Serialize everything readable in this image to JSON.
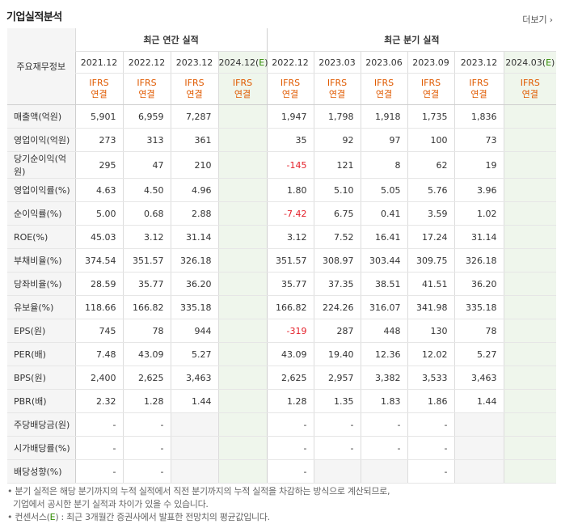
{
  "title": "기업실적분석",
  "more_label": "더보기",
  "label_header": "주요재무정보",
  "annual_group": "최근 연간 실적",
  "quarter_group": "최근 분기 실적",
  "annual_periods": [
    "2021.12",
    "2022.12",
    "2023.12",
    "2024.12(E)"
  ],
  "quarter_periods": [
    "2022.12",
    "2023.03",
    "2023.06",
    "2023.09",
    "2023.12",
    "2024.03(E)"
  ],
  "ifrs_line1": "IFRS",
  "ifrs_line2": "연결",
  "rows": [
    {
      "label": "매출액(억원)",
      "annual": [
        "5,901",
        "6,959",
        "7,287",
        ""
      ],
      "quarter": [
        "1,947",
        "1,798",
        "1,918",
        "1,735",
        "1,836",
        ""
      ]
    },
    {
      "label": "영업이익(억원)",
      "annual": [
        "273",
        "313",
        "361",
        ""
      ],
      "quarter": [
        "35",
        "92",
        "97",
        "100",
        "73",
        ""
      ]
    },
    {
      "label": "당기순이익(억원)",
      "annual": [
        "295",
        "47",
        "210",
        ""
      ],
      "quarter": [
        "-145",
        "121",
        "8",
        "62",
        "19",
        ""
      ]
    },
    {
      "label": "영업이익률(%)",
      "annual": [
        "4.63",
        "4.50",
        "4.96",
        ""
      ],
      "quarter": [
        "1.80",
        "5.10",
        "5.05",
        "5.76",
        "3.96",
        ""
      ]
    },
    {
      "label": "순이익률(%)",
      "annual": [
        "5.00",
        "0.68",
        "2.88",
        ""
      ],
      "quarter": [
        "-7.42",
        "6.75",
        "0.41",
        "3.59",
        "1.02",
        ""
      ]
    },
    {
      "label": "ROE(%)",
      "annual": [
        "45.03",
        "3.12",
        "31.14",
        ""
      ],
      "quarter": [
        "3.12",
        "7.52",
        "16.41",
        "17.24",
        "31.14",
        ""
      ]
    },
    {
      "label": "부채비율(%)",
      "annual": [
        "374.54",
        "351.57",
        "326.18",
        ""
      ],
      "quarter": [
        "351.57",
        "308.97",
        "303.44",
        "309.75",
        "326.18",
        ""
      ]
    },
    {
      "label": "당좌비율(%)",
      "annual": [
        "28.59",
        "35.77",
        "36.20",
        ""
      ],
      "quarter": [
        "35.77",
        "37.35",
        "38.51",
        "41.51",
        "36.20",
        ""
      ]
    },
    {
      "label": "유보율(%)",
      "annual": [
        "118.66",
        "166.82",
        "335.18",
        ""
      ],
      "quarter": [
        "166.82",
        "224.26",
        "316.07",
        "341.98",
        "335.18",
        ""
      ]
    },
    {
      "label": "EPS(원)",
      "annual": [
        "745",
        "78",
        "944",
        ""
      ],
      "quarter": [
        "-319",
        "287",
        "448",
        "130",
        "78",
        ""
      ]
    },
    {
      "label": "PER(배)",
      "annual": [
        "7.48",
        "43.09",
        "5.27",
        ""
      ],
      "quarter": [
        "43.09",
        "19.40",
        "12.36",
        "12.02",
        "5.27",
        ""
      ]
    },
    {
      "label": "BPS(원)",
      "annual": [
        "2,400",
        "2,625",
        "3,463",
        ""
      ],
      "quarter": [
        "2,625",
        "2,957",
        "3,382",
        "3,533",
        "3,463",
        ""
      ]
    },
    {
      "label": "PBR(배)",
      "annual": [
        "2.32",
        "1.28",
        "1.44",
        ""
      ],
      "quarter": [
        "1.28",
        "1.35",
        "1.83",
        "1.86",
        "1.44",
        ""
      ]
    },
    {
      "label": "주당배당금(원)",
      "annual": [
        "-",
        "-",
        "",
        ""
      ],
      "quarter": [
        "-",
        "-",
        "-",
        "-",
        "",
        ""
      ],
      "gray_annual": [
        2
      ],
      "gray_quarter": [
        4
      ]
    },
    {
      "label": "시가배당률(%)",
      "annual": [
        "-",
        "-",
        "",
        ""
      ],
      "quarter": [
        "-",
        "-",
        "-",
        "-",
        "",
        ""
      ],
      "gray_annual": [
        2
      ],
      "gray_quarter": [
        4
      ]
    },
    {
      "label": "배당성향(%)",
      "annual": [
        "-",
        "-",
        "",
        ""
      ],
      "quarter": [
        "-",
        "",
        "",
        "-",
        "",
        ""
      ],
      "gray_annual": [
        2
      ],
      "gray_quarter": [
        1,
        2,
        4
      ]
    }
  ],
  "notes": [
    "분기 실적은 해당 분기까지의 누적 실적에서 직전 분기까지의 누적 실적을 차감하는 방식으로 계산되므로,",
    "기업에서 공시한 분기 실적과 차이가 있을 수 있습니다.",
    "컨센서스(E) : 최근 3개월간 증권사에서 발표한 전망치의 평균값입니다."
  ],
  "colors": {
    "negative": "#e4202a",
    "ifrs": "#e05a00",
    "estimate_bg": "#eff6ec",
    "estimate_letter": "#2e8b00"
  }
}
